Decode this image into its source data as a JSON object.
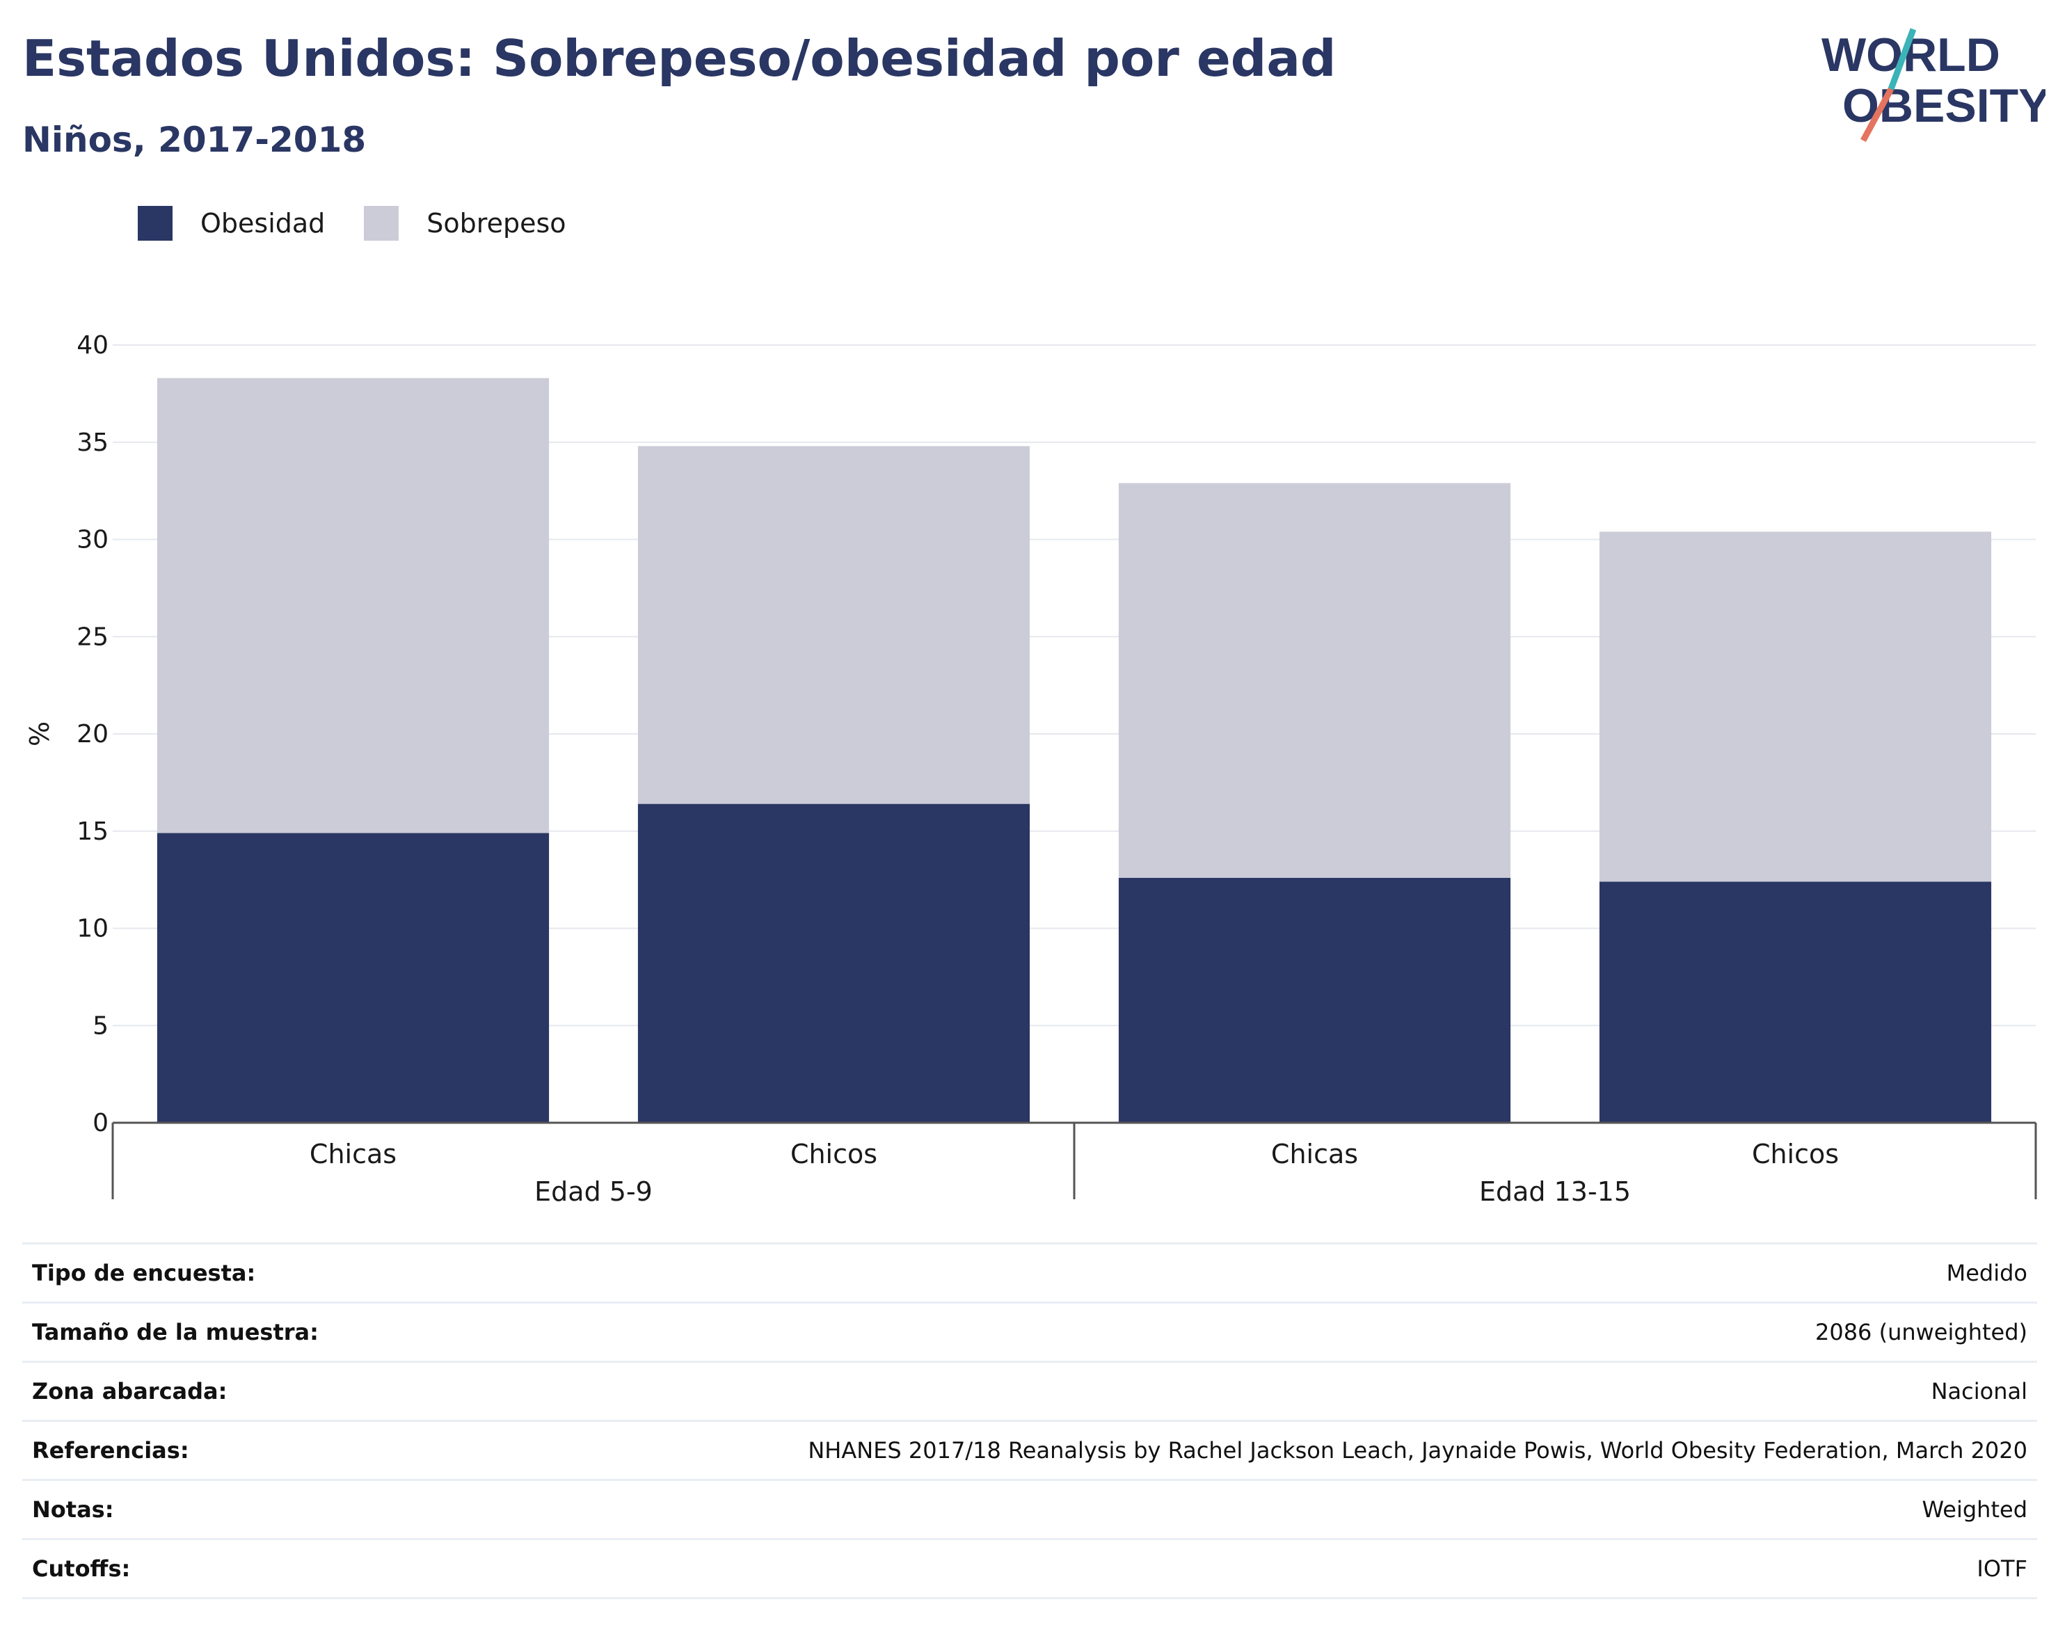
{
  "header": {
    "title": "Estados Unidos: Sobrepeso/obesidad por edad",
    "subtitle": "Niños, 2017-2018"
  },
  "logo": {
    "line1": "WORLD",
    "line2": "OBESITY"
  },
  "colors": {
    "obesity": "#2a3663",
    "overweight": "#cbccd8",
    "text_dark": "#2a3663",
    "accent_teal": "#3bb3b8",
    "accent_coral": "#e4735f"
  },
  "legend": [
    {
      "label": "Obesidad",
      "color": "#2a3663"
    },
    {
      "label": "Sobrepeso",
      "color": "#cbccd8"
    }
  ],
  "chart_data": {
    "type": "bar",
    "stacked": true,
    "categories": [
      "Chicas",
      "Chicos",
      "Chicas",
      "Chicos"
    ],
    "groups": [
      {
        "label": "Edad 5-9",
        "categories": [
          "Chicas",
          "Chicos"
        ]
      },
      {
        "label": "Edad 13-15",
        "categories": [
          "Chicas",
          "Chicos"
        ]
      }
    ],
    "series": [
      {
        "name": "Obesidad",
        "values": [
          14.9,
          16.4,
          12.6,
          12.4
        ]
      },
      {
        "name": "Sobrepeso",
        "values": [
          23.4,
          18.4,
          20.3,
          18.0
        ]
      }
    ],
    "ylabel": "%",
    "xlabel": "",
    "ylim": [
      0,
      40
    ],
    "yticks": [
      "0",
      "5",
      "10",
      "15",
      "20",
      "25",
      "30",
      "35",
      "40"
    ],
    "grid": true,
    "legend_position": "top-left"
  },
  "metadata": [
    {
      "label": "Tipo de encuesta:",
      "value": "Medido"
    },
    {
      "label": "Tamaño de la muestra:",
      "value": "2086 (unweighted)"
    },
    {
      "label": "Zona abarcada:",
      "value": "Nacional"
    },
    {
      "label": "Referencias:",
      "value": "NHANES 2017/18 Reanalysis by Rachel Jackson Leach, Jaynaide Powis, World Obesity Federation, March 2020"
    },
    {
      "label": "Notas:",
      "value": "Weighted"
    },
    {
      "label": "Cutoffs:",
      "value": "IOTF"
    }
  ]
}
